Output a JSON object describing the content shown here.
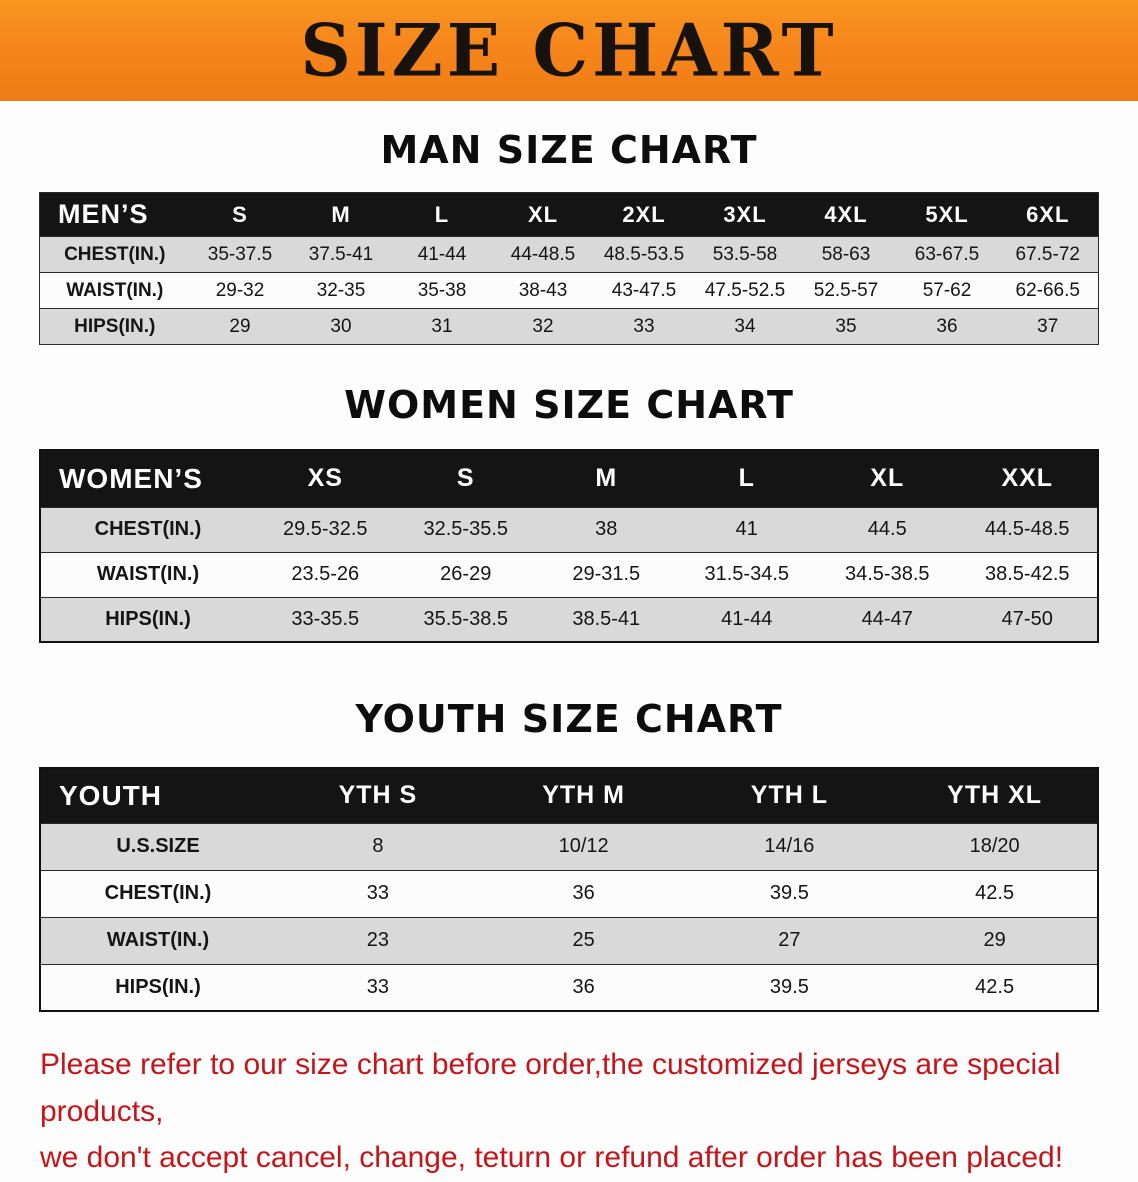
{
  "banner": {
    "title": "SIZE CHART"
  },
  "colors": {
    "banner_orange": "#F6861C",
    "table_header_black": "#141414",
    "row_gray": "#D9D9D9",
    "note_red": "#C4161A"
  },
  "sections": [
    {
      "heading": "MAN SIZE CHART",
      "table": {
        "header": [
          "MEN’S",
          "S",
          "M",
          "L",
          "XL",
          "2XL",
          "3XL",
          "4XL",
          "5XL",
          "6XL"
        ],
        "rows": [
          {
            "label": "CHEST(IN.)",
            "values": [
              "35-37.5",
              "37.5-41",
              "41-44",
              "44-48.5",
              "48.5-53.5",
              "53.5-58",
              "58-63",
              "63-67.5",
              "67.5-72"
            ]
          },
          {
            "label": "WAIST(IN.)",
            "values": [
              "29-32",
              "32-35",
              "35-38",
              "38-43",
              "43-47.5",
              "47.5-52.5",
              "52.5-57",
              "57-62",
              "62-66.5"
            ]
          },
          {
            "label": "HIPS(IN.)",
            "values": [
              "29",
              "30",
              "31",
              "32",
              "33",
              "34",
              "35",
              "36",
              "37"
            ]
          }
        ]
      }
    },
    {
      "heading": "WOMEN SIZE CHART",
      "table": {
        "header": [
          "WOMEN’S",
          "XS",
          "S",
          "M",
          "L",
          "XL",
          "XXL"
        ],
        "rows": [
          {
            "label": "CHEST(IN.)",
            "values": [
              "29.5-32.5",
              "32.5-35.5",
              "38",
              "41",
              "44.5",
              "44.5-48.5"
            ]
          },
          {
            "label": "WAIST(IN.)",
            "values": [
              "23.5-26",
              "26-29",
              "29-31.5",
              "31.5-34.5",
              "34.5-38.5",
              "38.5-42.5"
            ]
          },
          {
            "label": "HIPS(IN.)",
            "values": [
              "33-35.5",
              "35.5-38.5",
              "38.5-41",
              "41-44",
              "44-47",
              "47-50"
            ]
          }
        ]
      }
    },
    {
      "heading": "YOUTH SIZE CHART",
      "table": {
        "header": [
          "YOUTH",
          "YTH S",
          "YTH M",
          "YTH L",
          "YTH XL"
        ],
        "rows": [
          {
            "label": "U.S.SIZE",
            "values": [
              "8",
              "10/12",
              "14/16",
              "18/20"
            ]
          },
          {
            "label": "CHEST(IN.)",
            "values": [
              "33",
              "36",
              "39.5",
              "42.5"
            ]
          },
          {
            "label": "WAIST(IN.)",
            "values": [
              "23",
              "25",
              "27",
              "29"
            ]
          },
          {
            "label": "HIPS(IN.)",
            "values": [
              "33",
              "36",
              "39.5",
              "42.5"
            ]
          }
        ]
      }
    }
  ],
  "footer": {
    "line1": "Please refer to our size chart before order,the customized jerseys are special products,",
    "line2": "we don't accept cancel, change, teturn or refund after order has been placed!"
  }
}
